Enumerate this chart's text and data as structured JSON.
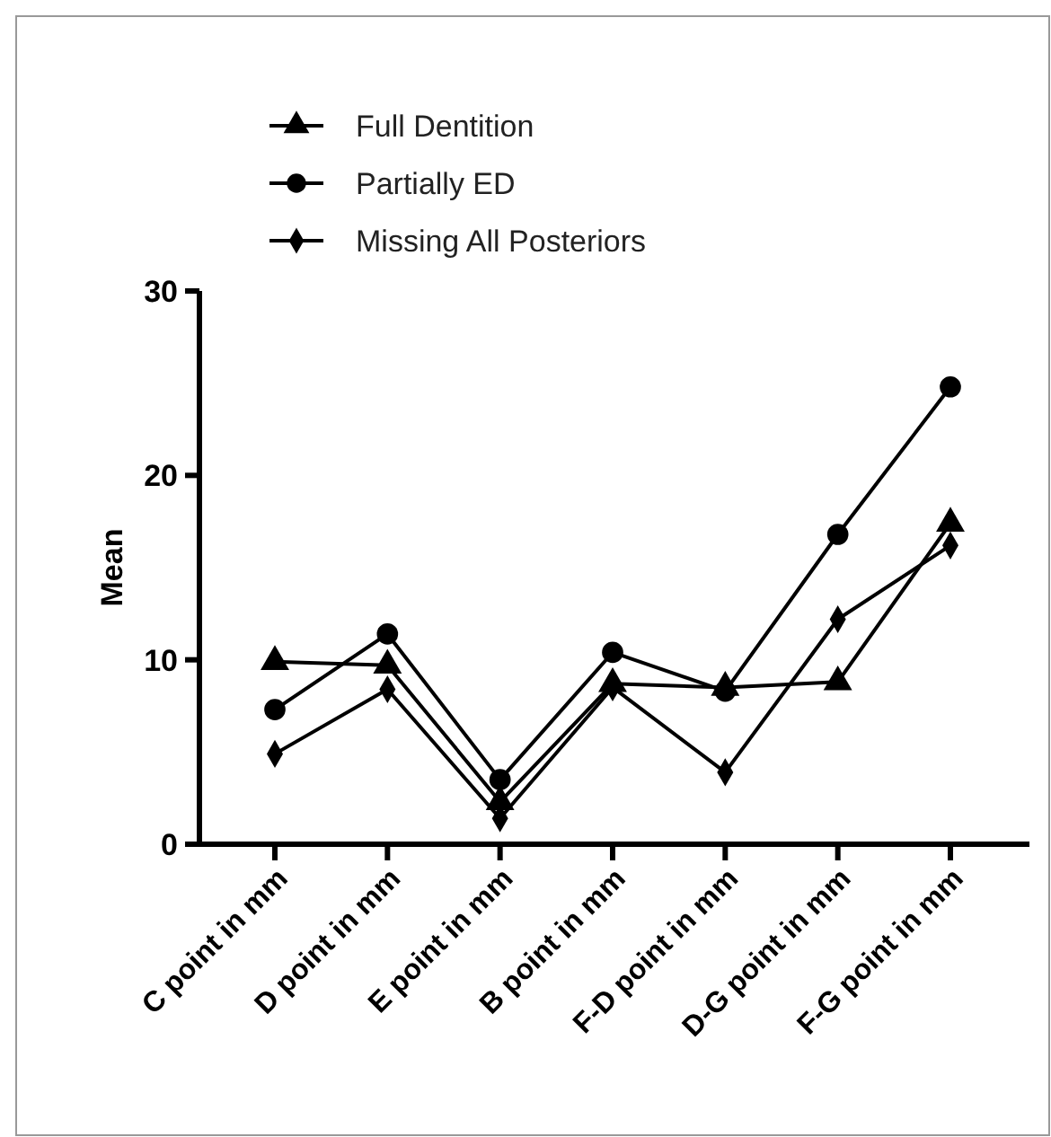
{
  "chart_data": {
    "type": "line",
    "ylabel": "Mean",
    "categories": [
      "C point in mm",
      "D point in mm",
      "E point in mm",
      "B point in mm",
      "F-D point in mm",
      "D-G point in mm",
      "F-G point in mm"
    ],
    "series": [
      {
        "name": "Full Dentition",
        "color": "#000000",
        "marker": "triangle",
        "values": [
          9.9,
          9.7,
          2.3,
          8.7,
          8.5,
          8.8,
          17.4
        ]
      },
      {
        "name": "Partially ED",
        "color": "#000000",
        "marker": "circle",
        "values": [
          7.3,
          11.4,
          3.5,
          10.4,
          8.3,
          16.8,
          24.8
        ]
      },
      {
        "name": "Missing All Posteriors",
        "color": "#000000",
        "marker": "diamond",
        "values": [
          4.9,
          8.4,
          1.4,
          8.5,
          3.9,
          12.2,
          16.2
        ]
      }
    ],
    "ylim": [
      0,
      30
    ],
    "yticks": [
      0,
      10,
      20,
      30
    ],
    "grid": false,
    "legend": "top left",
    "line_style": "solid"
  }
}
